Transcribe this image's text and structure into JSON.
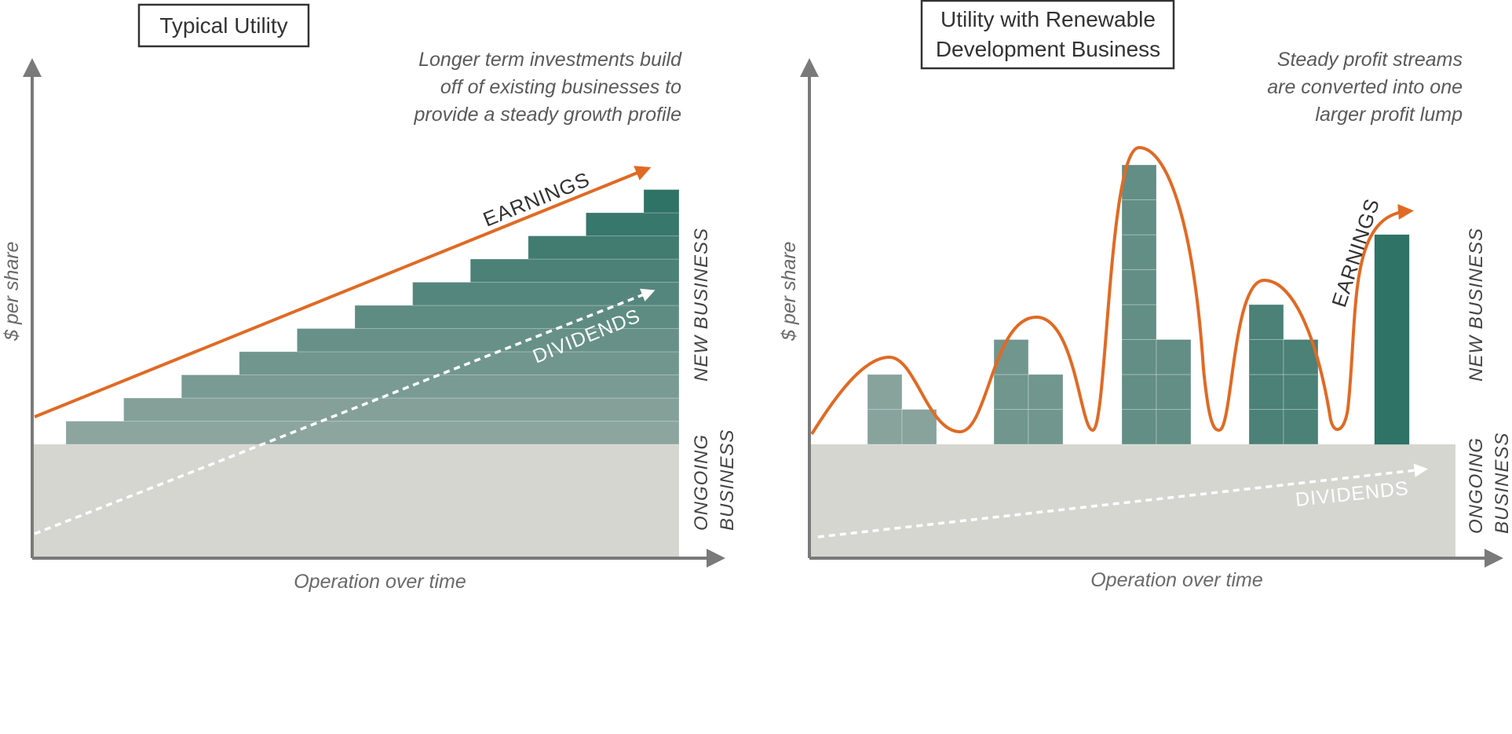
{
  "colors": {
    "earnings": "#e06a24",
    "dividends": "#ffffff",
    "ongoing_business": "#d5d6d0",
    "axis": "#7a7a7a",
    "bar_light": "#8da59f",
    "bar_dark": "#2f7266"
  },
  "left_panel": {
    "title": "Typical Utility",
    "caption": [
      "Longer term investments build",
      "off of existing businesses to",
      "provide a steady growth profile"
    ],
    "ylabel": "$ per share",
    "xlabel": "Operation over time",
    "earnings_label": "EARNINGS",
    "dividends_label": "DIVIDENDS",
    "new_business_label": "NEW BUSINESS",
    "ongoing_business_label": [
      "ONGOING",
      "BUSINESS"
    ]
  },
  "right_panel": {
    "title": [
      "Utility with Renewable",
      "Development Business"
    ],
    "caption": [
      "Steady profit streams",
      "are converted into one",
      "larger profit lump"
    ],
    "ylabel": "$ per share",
    "xlabel": "Operation over time",
    "earnings_label": "EARNINGS",
    "dividends_label": "DIVIDENDS",
    "new_business_label": "NEW BUSINESS",
    "ongoing_business_label": [
      "ONGOING",
      "BUSINESS"
    ]
  },
  "chart_data": [
    {
      "type": "bar",
      "description_units": "stacked new-business blocks above ongoing business",
      "steps": 11,
      "stack_heights": [
        1,
        2,
        3,
        4,
        5,
        6,
        7,
        8,
        9,
        10,
        11
      ]
    },
    {
      "type": "bar",
      "groups": [
        {
          "bars": [
            2,
            1
          ]
        },
        {
          "bars": [
            3,
            2
          ]
        },
        {
          "bars": [
            8,
            3
          ]
        },
        {
          "bars": [
            4,
            3
          ]
        },
        {
          "bars": [
            6
          ]
        }
      ]
    }
  ]
}
